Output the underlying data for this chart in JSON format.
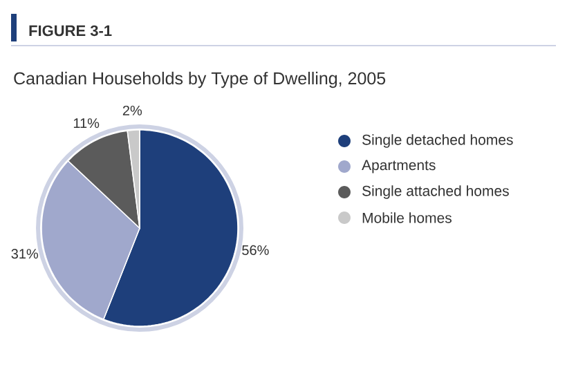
{
  "chart_data": {
    "type": "pie",
    "title": "Canadian Households by Type of Dwelling, 2005",
    "annotations": [
      "FIGURE 3-1"
    ],
    "categories": [
      "Single detached homes",
      "Apartments",
      "Single attached homes",
      "Mobile homes"
    ],
    "values": [
      56,
      31,
      11,
      2
    ],
    "colors": [
      "#1e3f7b",
      "#a0a8cc",
      "#5b5b5b",
      "#c9c9c9"
    ],
    "value_labels": [
      "56%",
      "31%",
      "11%",
      "2%"
    ],
    "legend": "right"
  }
}
